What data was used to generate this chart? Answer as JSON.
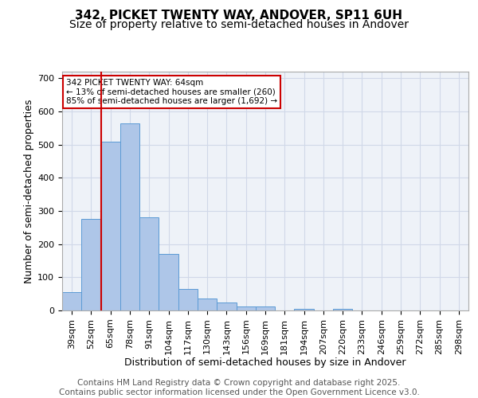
{
  "title": "342, PICKET TWENTY WAY, ANDOVER, SP11 6UH",
  "subtitle": "Size of property relative to semi-detached houses in Andover",
  "xlabel": "Distribution of semi-detached houses by size in Andover",
  "ylabel": "Number of semi-detached properties",
  "categories": [
    "39sqm",
    "52sqm",
    "65sqm",
    "78sqm",
    "91sqm",
    "104sqm",
    "117sqm",
    "130sqm",
    "143sqm",
    "156sqm",
    "169sqm",
    "181sqm",
    "194sqm",
    "207sqm",
    "220sqm",
    "233sqm",
    "246sqm",
    "259sqm",
    "272sqm",
    "285sqm",
    "298sqm"
  ],
  "values": [
    55,
    275,
    510,
    565,
    280,
    170,
    65,
    35,
    23,
    12,
    12,
    0,
    5,
    0,
    5,
    0,
    0,
    0,
    0,
    0,
    0
  ],
  "bar_color": "#aec6e8",
  "bar_edge_color": "#5b9bd5",
  "grid_color": "#d0d8e8",
  "background_color": "#eef2f8",
  "vline_x_index": 2,
  "vline_color": "#cc0000",
  "annotation_text": "342 PICKET TWENTY WAY: 64sqm\n← 13% of semi-detached houses are smaller (260)\n85% of semi-detached houses are larger (1,692) →",
  "annotation_box_color": "#ffffff",
  "annotation_box_edge": "#cc0000",
  "footer_text": "Contains HM Land Registry data © Crown copyright and database right 2025.\nContains public sector information licensed under the Open Government Licence v3.0.",
  "ylim": [
    0,
    720
  ],
  "yticks": [
    0,
    100,
    200,
    300,
    400,
    500,
    600,
    700
  ],
  "title_fontsize": 11,
  "subtitle_fontsize": 10,
  "axis_label_fontsize": 9,
  "tick_fontsize": 8,
  "footer_fontsize": 7.5,
  "fig_width": 6.0,
  "fig_height": 5.0
}
